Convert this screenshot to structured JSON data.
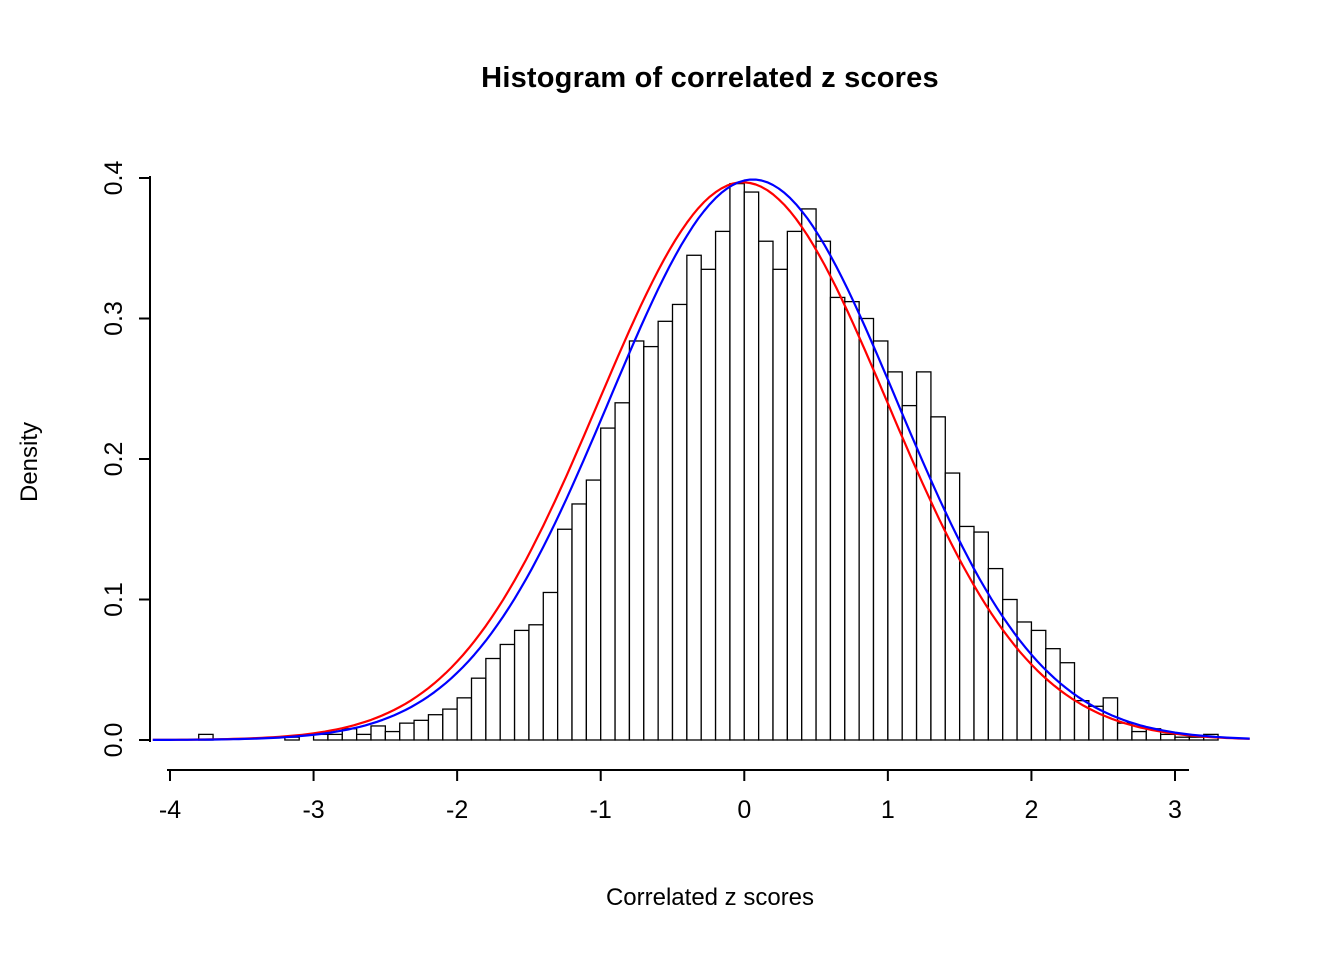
{
  "chart_data": {
    "type": "bar",
    "subtype": "histogram-with-density-curves",
    "title": "Histogram of correlated z scores",
    "xlabel": "Correlated z scores",
    "ylabel": "Density",
    "x_ticks": [
      -4,
      -3,
      -2,
      -1,
      0,
      1,
      2,
      3
    ],
    "y_ticks": [
      0.0,
      0.1,
      0.2,
      0.3,
      0.4
    ],
    "ylim": [
      0,
      0.4
    ],
    "grid": false,
    "legend": null,
    "background": "#FFFFFF",
    "axis_color": "#000000",
    "bar_fill": "#FFFFFF",
    "bar_stroke": "#000000",
    "bin_start": -3.8,
    "bin_width": 0.1,
    "densities": [
      0.004,
      0,
      0,
      0,
      0,
      0,
      0.002,
      0,
      0.004,
      0.004,
      0.008,
      0.004,
      0.01,
      0.006,
      0.012,
      0.014,
      0.018,
      0.022,
      0.03,
      0.044,
      0.058,
      0.068,
      0.078,
      0.082,
      0.105,
      0.15,
      0.168,
      0.185,
      0.222,
      0.24,
      0.284,
      0.28,
      0.298,
      0.31,
      0.345,
      0.335,
      0.362,
      0.396,
      0.39,
      0.355,
      0.335,
      0.362,
      0.378,
      0.355,
      0.315,
      0.312,
      0.3,
      0.284,
      0.262,
      0.238,
      0.262,
      0.23,
      0.19,
      0.152,
      0.148,
      0.122,
      0.1,
      0.084,
      0.078,
      0.065,
      0.055,
      0.028,
      0.024,
      0.03,
      0.012,
      0.006,
      0.008,
      0.004,
      0.002,
      0.002,
      0.004
    ],
    "curves": [
      {
        "name": "red-normal-curve",
        "color": "#FF0000",
        "mean": -0.01,
        "sd": 1.005
      },
      {
        "name": "blue-normal-curve",
        "color": "#0000FF",
        "mean": 0.06,
        "sd": 1.0
      }
    ],
    "curve_range": [
      -4.12,
      3.55
    ]
  }
}
